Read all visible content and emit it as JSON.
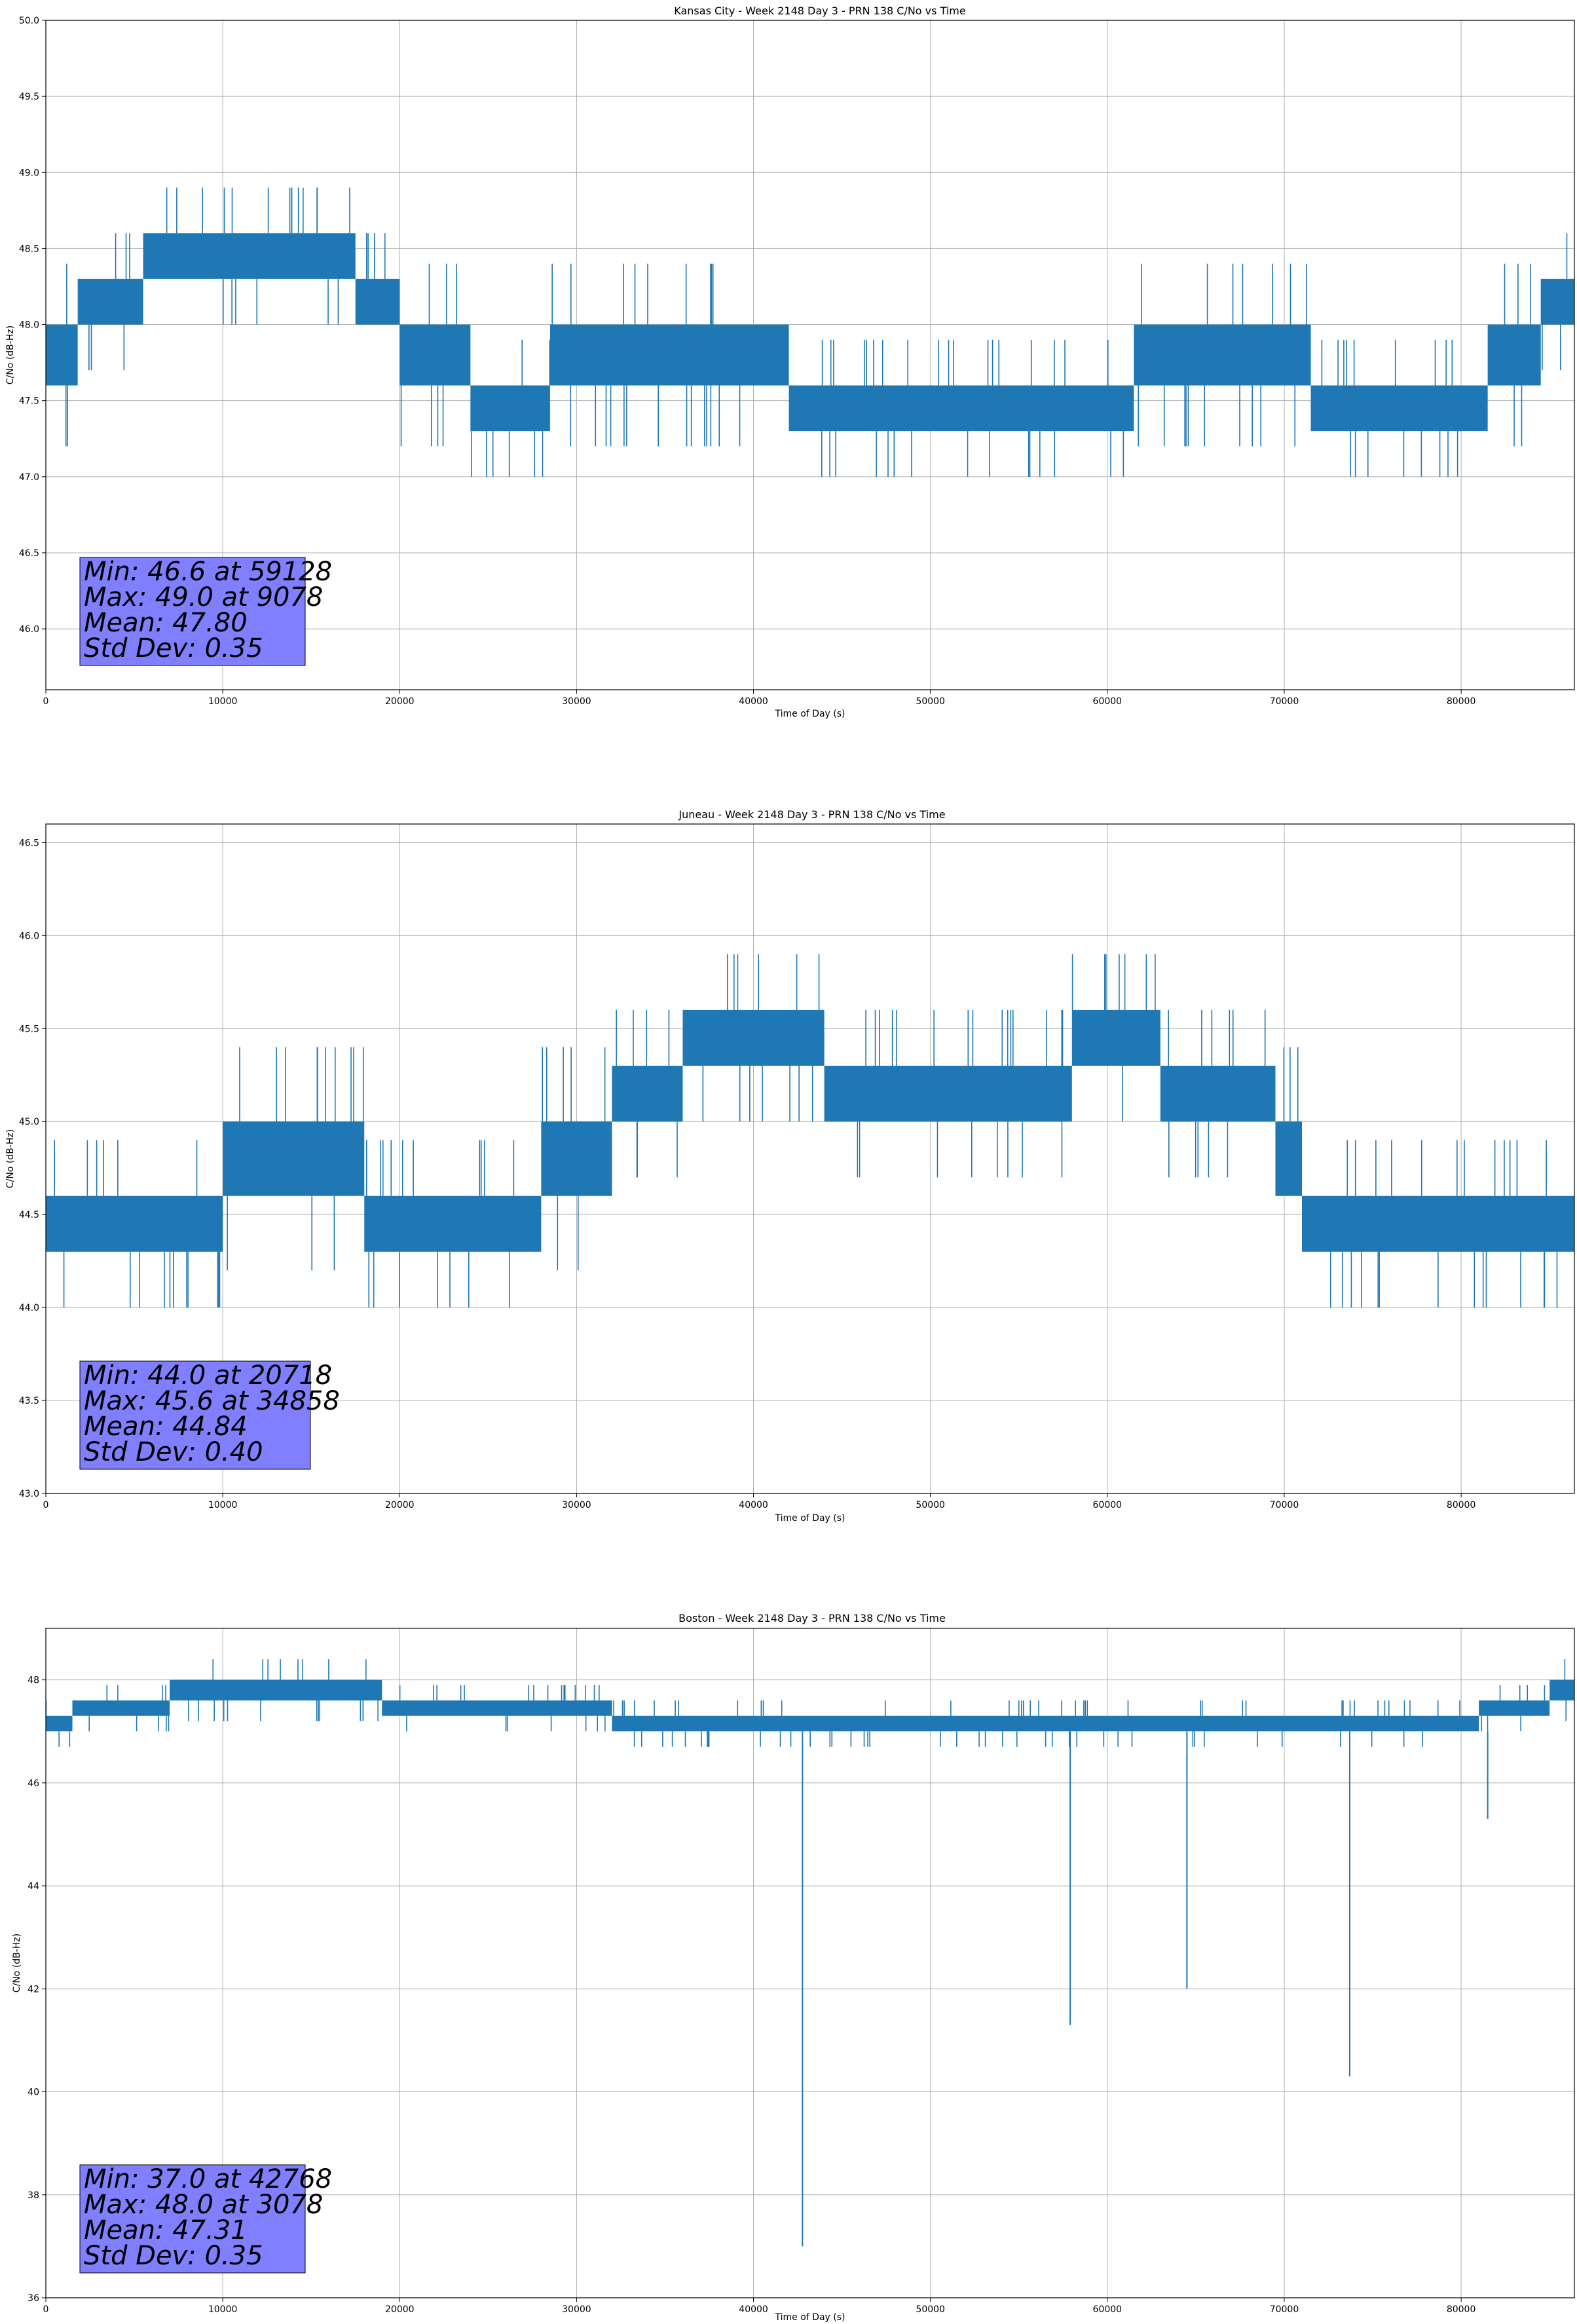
{
  "chart_data": [
    {
      "type": "line",
      "title": "Kansas City - Week 2148 Day 3 - PRN 138 C/No vs Time",
      "xlabel": "Time of Day (s)",
      "ylabel": "C/No (dB-Hz)",
      "xlim": [
        0,
        86400
      ],
      "ylim": [
        45.6,
        50.0
      ],
      "xticks": [
        0,
        10000,
        20000,
        30000,
        40000,
        50000,
        60000,
        70000,
        80000
      ],
      "xtick_labels": [
        "0",
        "10000",
        "20000",
        "30000",
        "40000",
        "50000",
        "60000",
        "70000",
        "80000"
      ],
      "yticks": [
        46.0,
        46.5,
        47.0,
        47.5,
        48.0,
        48.5,
        49.0,
        49.5,
        50.0
      ],
      "ytick_labels": [
        "46.0",
        "46.5",
        "47.0",
        "47.5",
        "48.0",
        "48.5",
        "49.0",
        "49.5",
        "50.0"
      ],
      "grid": true,
      "color": "#1f77b4",
      "series": [
        {
          "name": "C/No",
          "bands": [
            {
              "x0": 0,
              "x1": 1800,
              "lo": 47.6,
              "hi": 48.0
            },
            {
              "x0": 1800,
              "x1": 5500,
              "lo": 48.0,
              "hi": 48.3
            },
            {
              "x0": 5500,
              "x1": 17500,
              "lo": 48.3,
              "hi": 48.6
            },
            {
              "x0": 17500,
              "x1": 20000,
              "lo": 48.0,
              "hi": 48.3
            },
            {
              "x0": 20000,
              "x1": 24000,
              "lo": 47.6,
              "hi": 48.0
            },
            {
              "x0": 24000,
              "x1": 28500,
              "lo": 47.3,
              "hi": 47.6
            },
            {
              "x0": 28500,
              "x1": 42000,
              "lo": 47.6,
              "hi": 48.0
            },
            {
              "x0": 42000,
              "x1": 61500,
              "lo": 47.3,
              "hi": 47.6
            },
            {
              "x0": 61500,
              "x1": 71500,
              "lo": 47.6,
              "hi": 48.0
            },
            {
              "x0": 71500,
              "x1": 81500,
              "lo": 47.3,
              "hi": 47.6
            },
            {
              "x0": 81500,
              "x1": 84500,
              "lo": 47.6,
              "hi": 48.0
            },
            {
              "x0": 84500,
              "x1": 86400,
              "lo": 48.0,
              "hi": 48.3
            }
          ]
        }
      ],
      "stats": {
        "min": "Min: 46.6 at 59128",
        "max": "Max: 49.0 at 9078",
        "mean": "Mean: 47.80",
        "std": "Std Dev: 0.35"
      }
    },
    {
      "type": "line",
      "title": "Juneau - Week 2148 Day 3 - PRN 138 C/No vs Time",
      "xlabel": "Time of Day (s)",
      "ylabel": "C/No (dB-Hz)",
      "xlim": [
        0,
        86400
      ],
      "ylim": [
        43.0,
        46.6
      ],
      "xticks": [
        0,
        10000,
        20000,
        30000,
        40000,
        50000,
        60000,
        70000,
        80000
      ],
      "xtick_labels": [
        "0",
        "10000",
        "20000",
        "30000",
        "40000",
        "50000",
        "60000",
        "70000",
        "80000"
      ],
      "yticks": [
        43.0,
        43.5,
        44.0,
        44.5,
        45.0,
        45.5,
        46.0,
        46.5
      ],
      "ytick_labels": [
        "43.0",
        "43.5",
        "44.0",
        "44.5",
        "45.0",
        "45.5",
        "46.0",
        "46.5"
      ],
      "grid": true,
      "color": "#1f77b4",
      "series": [
        {
          "name": "C/No",
          "bands": [
            {
              "x0": 0,
              "x1": 10000,
              "lo": 44.3,
              "hi": 44.6
            },
            {
              "x0": 10000,
              "x1": 18000,
              "lo": 44.6,
              "hi": 45.0
            },
            {
              "x0": 18000,
              "x1": 28000,
              "lo": 44.3,
              "hi": 44.6
            },
            {
              "x0": 28000,
              "x1": 32000,
              "lo": 44.6,
              "hi": 45.0
            },
            {
              "x0": 32000,
              "x1": 36000,
              "lo": 45.0,
              "hi": 45.3
            },
            {
              "x0": 36000,
              "x1": 44000,
              "lo": 45.3,
              "hi": 45.6
            },
            {
              "x0": 44000,
              "x1": 58000,
              "lo": 45.0,
              "hi": 45.3
            },
            {
              "x0": 58000,
              "x1": 63000,
              "lo": 45.3,
              "hi": 45.6
            },
            {
              "x0": 63000,
              "x1": 69500,
              "lo": 45.0,
              "hi": 45.3
            },
            {
              "x0": 69500,
              "x1": 71000,
              "lo": 44.6,
              "hi": 45.0
            },
            {
              "x0": 71000,
              "x1": 86400,
              "lo": 44.3,
              "hi": 44.6
            }
          ]
        }
      ],
      "stats": {
        "min": "Min: 44.0 at 20718",
        "max": "Max: 45.6 at 34858",
        "mean": "Mean: 44.84",
        "std": "Std Dev: 0.40"
      }
    },
    {
      "type": "line",
      "title": "Boston - Week 2148 Day 3 - PRN 138 C/No vs Time",
      "xlabel": "Time of Day (s)",
      "ylabel": "C/No (dB-Hz)",
      "xlim": [
        0,
        86400
      ],
      "ylim": [
        36.0,
        49.0
      ],
      "xticks": [
        0,
        10000,
        20000,
        30000,
        40000,
        50000,
        60000,
        70000,
        80000
      ],
      "xtick_labels": [
        "0",
        "10000",
        "20000",
        "30000",
        "40000",
        "50000",
        "60000",
        "70000",
        "80000"
      ],
      "yticks": [
        36,
        38,
        40,
        42,
        44,
        46,
        48
      ],
      "ytick_labels": [
        "36",
        "38",
        "40",
        "42",
        "44",
        "46",
        "48"
      ],
      "grid": true,
      "color": "#1f77b4",
      "series": [
        {
          "name": "C/No",
          "bands": [
            {
              "x0": 0,
              "x1": 1500,
              "lo": 47.0,
              "hi": 47.3
            },
            {
              "x0": 1500,
              "x1": 7000,
              "lo": 47.3,
              "hi": 47.6
            },
            {
              "x0": 7000,
              "x1": 19000,
              "lo": 47.6,
              "hi": 48.0
            },
            {
              "x0": 19000,
              "x1": 32000,
              "lo": 47.3,
              "hi": 47.6
            },
            {
              "x0": 32000,
              "x1": 81000,
              "lo": 47.0,
              "hi": 47.3
            },
            {
              "x0": 81000,
              "x1": 85000,
              "lo": 47.3,
              "hi": 47.6
            },
            {
              "x0": 85000,
              "x1": 86400,
              "lo": 47.6,
              "hi": 48.0
            }
          ],
          "spikes": [
            {
              "x": 42768,
              "y": 37.0
            },
            {
              "x": 57900,
              "y": 41.3
            },
            {
              "x": 64500,
              "y": 42.0
            },
            {
              "x": 73700,
              "y": 40.3
            },
            {
              "x": 81500,
              "y": 45.3
            }
          ]
        }
      ],
      "stats": {
        "min": "Min: 37.0 at 42768",
        "max": "Max: 48.0 at 3078",
        "mean": "Mean: 47.31",
        "std": "Std Dev: 0.35"
      }
    }
  ]
}
